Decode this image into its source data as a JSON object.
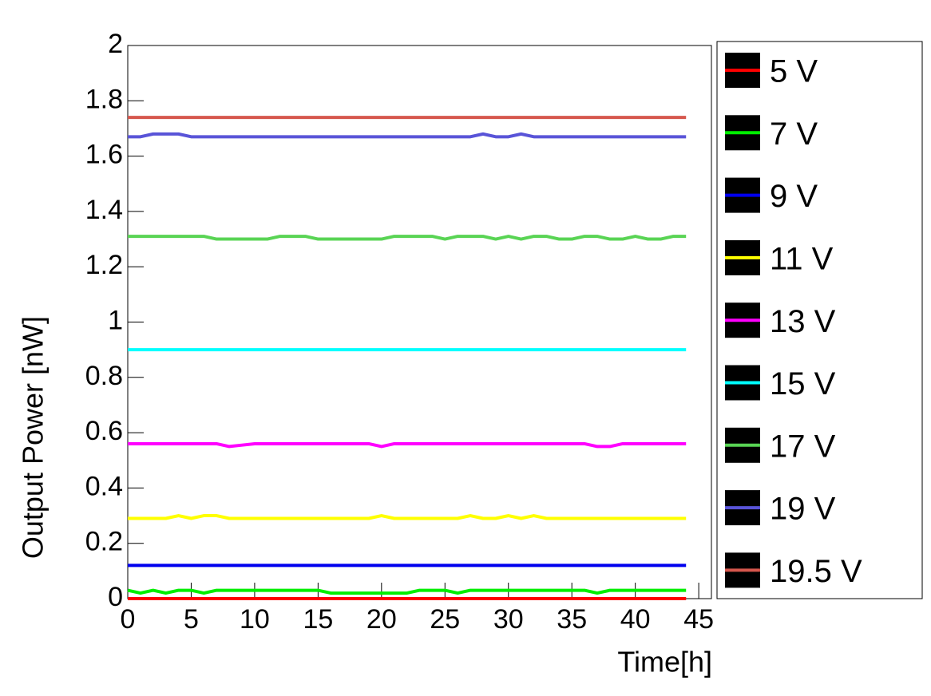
{
  "chart_data": {
    "type": "line",
    "x_label": "Time[h]",
    "y_label": "Output Power [nW]",
    "xlim": [
      0,
      46
    ],
    "ylim": [
      0,
      2
    ],
    "xticks": [
      0,
      5,
      10,
      15,
      20,
      25,
      30,
      35,
      40,
      45
    ],
    "yticks": [
      0,
      0.2,
      0.4,
      0.6,
      0.8,
      1,
      1.2,
      1.4,
      1.6,
      1.8,
      2
    ],
    "x": [
      0,
      1,
      2,
      3,
      4,
      5,
      6,
      7,
      8,
      9,
      10,
      11,
      12,
      13,
      14,
      15,
      16,
      17,
      18,
      19,
      20,
      21,
      22,
      23,
      24,
      25,
      26,
      27,
      28,
      29,
      30,
      31,
      32,
      33,
      34,
      35,
      36,
      37,
      38,
      39,
      40,
      41,
      42,
      43,
      44
    ],
    "series": [
      {
        "name": "5 V",
        "color": "#ff0000",
        "values": [
          0,
          0,
          0,
          0,
          0,
          0,
          0,
          0,
          0,
          0,
          0,
          0,
          0,
          0,
          0,
          0,
          0,
          0,
          0,
          0,
          0,
          0,
          0,
          0,
          0,
          0,
          0,
          0,
          0,
          0,
          0,
          0,
          0,
          0,
          0,
          0,
          0,
          0,
          0,
          0,
          0,
          0,
          0,
          0,
          0
        ]
      },
      {
        "name": "7 V",
        "color": "#00ee00",
        "values": [
          0.03,
          0.02,
          0.03,
          0.02,
          0.03,
          0.03,
          0.02,
          0.03,
          0.03,
          0.03,
          0.03,
          0.03,
          0.03,
          0.03,
          0.03,
          0.03,
          0.02,
          0.02,
          0.02,
          0.02,
          0.02,
          0.02,
          0.02,
          0.03,
          0.03,
          0.03,
          0.02,
          0.03,
          0.03,
          0.03,
          0.03,
          0.03,
          0.03,
          0.03,
          0.03,
          0.03,
          0.03,
          0.02,
          0.03,
          0.03,
          0.03,
          0.03,
          0.03,
          0.03,
          0.03
        ]
      },
      {
        "name": "9 V",
        "color": "#0000ee",
        "values": [
          0.12,
          0.12,
          0.12,
          0.12,
          0.12,
          0.12,
          0.12,
          0.12,
          0.12,
          0.12,
          0.12,
          0.12,
          0.12,
          0.12,
          0.12,
          0.12,
          0.12,
          0.12,
          0.12,
          0.12,
          0.12,
          0.12,
          0.12,
          0.12,
          0.12,
          0.12,
          0.12,
          0.12,
          0.12,
          0.12,
          0.12,
          0.12,
          0.12,
          0.12,
          0.12,
          0.12,
          0.12,
          0.12,
          0.12,
          0.12,
          0.12,
          0.12,
          0.12,
          0.12,
          0.12
        ]
      },
      {
        "name": "11 V",
        "color": "#ffff00",
        "values": [
          0.29,
          0.29,
          0.29,
          0.29,
          0.3,
          0.29,
          0.3,
          0.3,
          0.29,
          0.29,
          0.29,
          0.29,
          0.29,
          0.29,
          0.29,
          0.29,
          0.29,
          0.29,
          0.29,
          0.29,
          0.3,
          0.29,
          0.29,
          0.29,
          0.29,
          0.29,
          0.29,
          0.3,
          0.29,
          0.29,
          0.3,
          0.29,
          0.3,
          0.29,
          0.29,
          0.29,
          0.29,
          0.29,
          0.29,
          0.29,
          0.29,
          0.29,
          0.29,
          0.29,
          0.29
        ]
      },
      {
        "name": "13 V",
        "color": "#ff00ff",
        "values": [
          0.56,
          0.56,
          0.56,
          0.56,
          0.56,
          0.56,
          0.56,
          0.56,
          0.55,
          0.555,
          0.56,
          0.56,
          0.56,
          0.56,
          0.56,
          0.56,
          0.56,
          0.56,
          0.56,
          0.56,
          0.55,
          0.56,
          0.56,
          0.56,
          0.56,
          0.56,
          0.56,
          0.56,
          0.56,
          0.56,
          0.56,
          0.56,
          0.56,
          0.56,
          0.56,
          0.56,
          0.56,
          0.55,
          0.55,
          0.56,
          0.56,
          0.56,
          0.56,
          0.56,
          0.56
        ]
      },
      {
        "name": "15 V",
        "color": "#00ffff",
        "values": [
          0.9,
          0.9,
          0.9,
          0.9,
          0.9,
          0.9,
          0.9,
          0.9,
          0.9,
          0.9,
          0.9,
          0.9,
          0.9,
          0.9,
          0.9,
          0.9,
          0.9,
          0.9,
          0.9,
          0.9,
          0.9,
          0.9,
          0.9,
          0.9,
          0.9,
          0.9,
          0.9,
          0.9,
          0.9,
          0.9,
          0.9,
          0.9,
          0.9,
          0.9,
          0.9,
          0.9,
          0.9,
          0.9,
          0.9,
          0.9,
          0.9,
          0.9,
          0.9,
          0.9,
          0.9
        ]
      },
      {
        "name": "17 V",
        "color": "#59d454",
        "values": [
          1.31,
          1.31,
          1.31,
          1.31,
          1.31,
          1.31,
          1.31,
          1.3,
          1.3,
          1.3,
          1.3,
          1.3,
          1.31,
          1.31,
          1.31,
          1.3,
          1.3,
          1.3,
          1.3,
          1.3,
          1.3,
          1.31,
          1.31,
          1.31,
          1.31,
          1.3,
          1.31,
          1.31,
          1.31,
          1.3,
          1.31,
          1.3,
          1.31,
          1.31,
          1.3,
          1.3,
          1.31,
          1.31,
          1.3,
          1.3,
          1.31,
          1.3,
          1.3,
          1.31,
          1.31
        ]
      },
      {
        "name": "19 V",
        "color": "#5954d8",
        "values": [
          1.67,
          1.67,
          1.68,
          1.68,
          1.68,
          1.67,
          1.67,
          1.67,
          1.67,
          1.67,
          1.67,
          1.67,
          1.67,
          1.67,
          1.67,
          1.67,
          1.67,
          1.67,
          1.67,
          1.67,
          1.67,
          1.67,
          1.67,
          1.67,
          1.67,
          1.67,
          1.67,
          1.67,
          1.68,
          1.67,
          1.67,
          1.68,
          1.67,
          1.67,
          1.67,
          1.67,
          1.67,
          1.67,
          1.67,
          1.67,
          1.67,
          1.67,
          1.67,
          1.67,
          1.67
        ]
      },
      {
        "name": "19.5 V",
        "color": "#d6574d",
        "values": [
          1.74,
          1.74,
          1.74,
          1.74,
          1.74,
          1.74,
          1.74,
          1.74,
          1.74,
          1.74,
          1.74,
          1.74,
          1.74,
          1.74,
          1.74,
          1.74,
          1.74,
          1.74,
          1.74,
          1.74,
          1.74,
          1.74,
          1.74,
          1.74,
          1.74,
          1.74,
          1.74,
          1.74,
          1.74,
          1.74,
          1.74,
          1.74,
          1.74,
          1.74,
          1.74,
          1.74,
          1.74,
          1.74,
          1.74,
          1.74,
          1.74,
          1.74,
          1.74,
          1.74,
          1.74
        ]
      }
    ]
  }
}
